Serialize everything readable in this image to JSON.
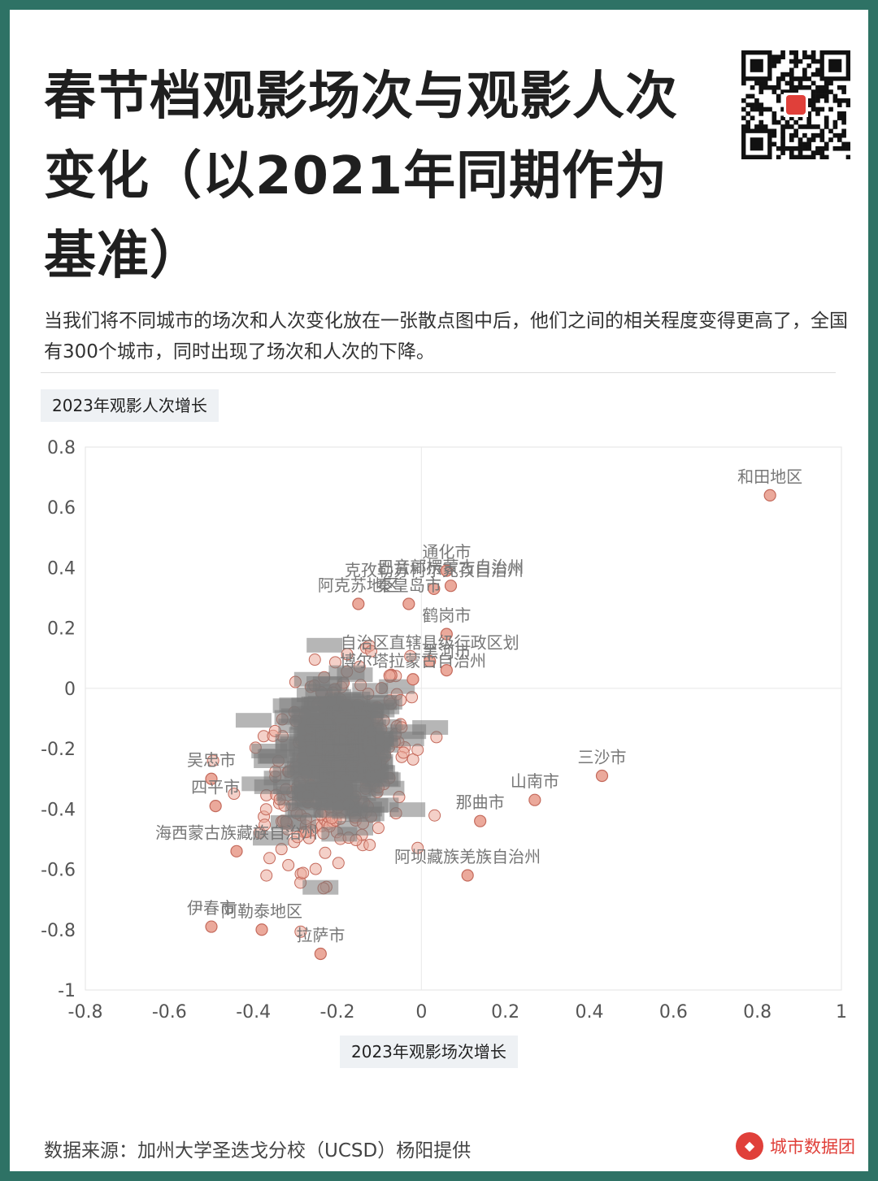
{
  "title": "春节档观影场次与观影人次变化（以2021年同期作为基准）",
  "subtitle": "当我们将不同城市的场次和人次变化放在一张散点图中后，他们之间的相关程度变得更高了，全国有300个城市，同时出现了场次和人次的下降。",
  "source": "数据来源：加州大学圣迭戈分校（UCSD）杨阳提供",
  "brand": "城市数据团",
  "qr_icon": "qr-code-icon",
  "colors": {
    "accent": "#2e7265",
    "point_fill": "#eba99b",
    "point_stroke": "#c46a5c",
    "label": "#777777",
    "brand": "#e0403a"
  },
  "chart_data": {
    "type": "scatter",
    "xlabel": "2023年观影场次增长",
    "ylabel": "2023年观影人次增长",
    "xlim": [
      -0.8,
      1
    ],
    "ylim": [
      -1,
      0.8
    ],
    "xticks": [
      "-0.8",
      "-0.6",
      "-0.4",
      "-0.2",
      "0",
      "0.2",
      "0.4",
      "0.6",
      "0.8",
      "1"
    ],
    "yticks": [
      "0.8",
      "0.6",
      "0.4",
      "0.2",
      "0",
      "-0.2",
      "-0.4",
      "-0.6",
      "-0.8",
      "-1"
    ],
    "labeled_points": [
      {
        "name": "和田地区",
        "x": 0.83,
        "y": 0.64
      },
      {
        "name": "三沙市",
        "x": 0.43,
        "y": -0.29
      },
      {
        "name": "通化市",
        "x": 0.06,
        "y": 0.39
      },
      {
        "name": "巴音郭楞蒙古自治州",
        "x": 0.07,
        "y": 0.34
      },
      {
        "name": "阿克苏地区",
        "x": -0.15,
        "y": 0.28
      },
      {
        "name": "克孜勒苏柯尔克孜自治州",
        "x": 0.03,
        "y": 0.33
      },
      {
        "name": "秦皇岛市",
        "x": -0.03,
        "y": 0.28
      },
      {
        "name": "鹤岗市",
        "x": 0.06,
        "y": 0.18
      },
      {
        "name": "自治区直辖县级行政区划",
        "x": 0.02,
        "y": 0.09
      },
      {
        "name": "博尔塔拉蒙古自治州",
        "x": -0.02,
        "y": 0.03
      },
      {
        "name": "黑河市",
        "x": 0.06,
        "y": 0.06
      },
      {
        "name": "山南市",
        "x": 0.27,
        "y": -0.37
      },
      {
        "name": "那曲市",
        "x": 0.14,
        "y": -0.44
      },
      {
        "name": "阿坝藏族羌族自治州",
        "x": 0.11,
        "y": -0.62
      },
      {
        "name": "吴忠市",
        "x": -0.5,
        "y": -0.3
      },
      {
        "name": "四平市",
        "x": -0.49,
        "y": -0.39
      },
      {
        "name": "海西蒙古族藏族自治州",
        "x": -0.44,
        "y": -0.54
      },
      {
        "name": "伊春市",
        "x": -0.5,
        "y": -0.79
      },
      {
        "name": "阿勒泰地区",
        "x": -0.38,
        "y": -0.8
      },
      {
        "name": "拉萨市",
        "x": -0.24,
        "y": -0.88
      }
    ]
  }
}
